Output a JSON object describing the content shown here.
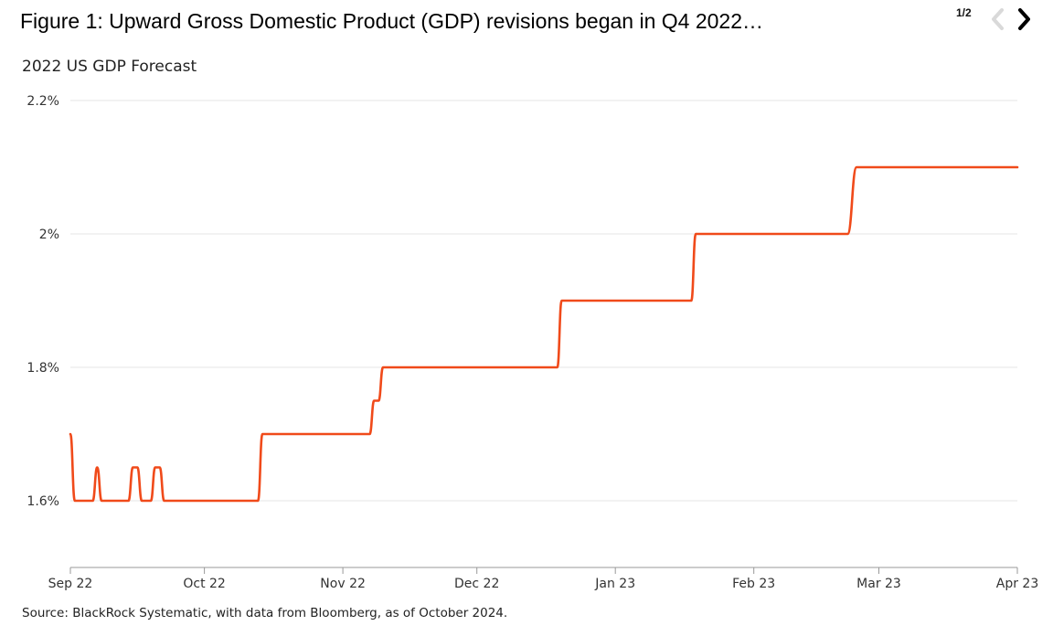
{
  "title": "Figure 1: Upward Gross Domestic Product (GDP) revisions began in Q4 2022…",
  "pager": {
    "current_total": "1/2"
  },
  "colors": {
    "line": "#f04a1a",
    "grid": "#e6e6e6",
    "axis": "#999999",
    "nav_disabled": "#d9d9d9",
    "nav_active": "#000000"
  },
  "icons": {
    "prev": "chevron-left-icon",
    "next": "chevron-right-icon"
  },
  "source": "Source: BlackRock Systematic, with data from Bloomberg, as of October 2024.",
  "chart_data": {
    "type": "line",
    "title": "2022 US GDP Forecast",
    "xlabel": "",
    "ylabel": "",
    "x_ticks": [
      {
        "date": "2022-09-01",
        "label": "Sep 22"
      },
      {
        "date": "2022-10-01",
        "label": "Oct 22"
      },
      {
        "date": "2022-11-01",
        "label": "Nov 22"
      },
      {
        "date": "2022-12-01",
        "label": "Dec 22"
      },
      {
        "date": "2023-01-01",
        "label": "Jan 23"
      },
      {
        "date": "2023-02-01",
        "label": "Feb 23"
      },
      {
        "date": "2023-03-01",
        "label": "Mar 23"
      },
      {
        "date": "2023-04-01",
        "label": "Apr 23"
      }
    ],
    "y_ticks": [
      {
        "value": 1.6,
        "label": "1.6%"
      },
      {
        "value": 1.8,
        "label": "1.8%"
      },
      {
        "value": 2.0,
        "label": "2%"
      },
      {
        "value": 2.2,
        "label": "2.2%"
      }
    ],
    "xlim": [
      "2022-09-01",
      "2023-04-01"
    ],
    "ylim": [
      1.5,
      2.2
    ],
    "grid": "horizontal",
    "series": [
      {
        "x": [
          "2022-09-01",
          "2022-09-02",
          "2022-09-06",
          "2022-09-07",
          "2022-09-08",
          "2022-09-14",
          "2022-09-15",
          "2022-09-16",
          "2022-09-17",
          "2022-09-19",
          "2022-09-20",
          "2022-09-21",
          "2022-09-22",
          "2022-09-23",
          "2022-10-13",
          "2022-10-14",
          "2022-11-07",
          "2022-11-08",
          "2022-11-09",
          "2022-11-10",
          "2022-12-19",
          "2022-12-20",
          "2023-01-18",
          "2023-01-19",
          "2023-02-22",
          "2023-02-24",
          "2023-04-01"
        ],
        "y": [
          1.7,
          1.6,
          1.6,
          1.65,
          1.6,
          1.6,
          1.65,
          1.65,
          1.6,
          1.6,
          1.65,
          1.65,
          1.6,
          1.6,
          1.6,
          1.7,
          1.7,
          1.75,
          1.75,
          1.8,
          1.8,
          1.9,
          1.9,
          2.0,
          2.0,
          2.1,
          2.1
        ]
      }
    ]
  }
}
